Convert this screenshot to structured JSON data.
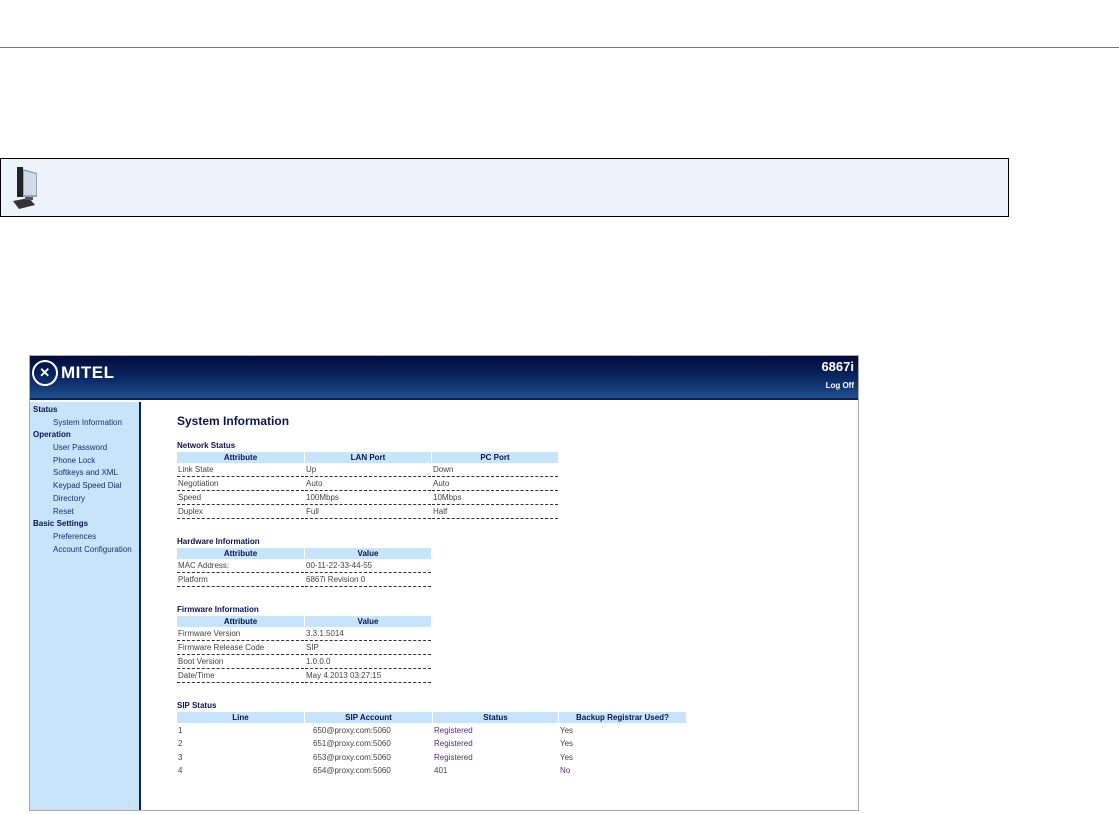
{
  "header": {
    "brand": "MITEL",
    "model": "6867i",
    "logoff": "Log Off"
  },
  "sidebar": [
    {
      "group": "Status",
      "items": [
        "System Information"
      ]
    },
    {
      "group": "Operation",
      "items": [
        "User Password",
        "Phone Lock",
        "Softkeys and XML",
        "Keypad Speed Dial",
        "Directory",
        "Reset"
      ]
    },
    {
      "group": "Basic Settings",
      "items": [
        "Preferences",
        "Account Configuration"
      ]
    }
  ],
  "page_title": "System Information",
  "network": {
    "title": "Network Status",
    "headers": [
      "Attribute",
      "LAN Port",
      "PC Port"
    ],
    "rows": [
      [
        "Link State",
        "Up",
        "Down"
      ],
      [
        "Negotiation",
        "Auto",
        "Auto"
      ],
      [
        "Speed",
        "100Mbps",
        "10Mbps"
      ],
      [
        "Duplex",
        "Full",
        "Half"
      ]
    ]
  },
  "hardware": {
    "title": "Hardware Information",
    "headers": [
      "Attribute",
      "Value"
    ],
    "rows": [
      [
        "MAC Address:",
        "00-11-22-33-44-55"
      ],
      [
        "Platform",
        "6867i Revision 0"
      ]
    ]
  },
  "firmware": {
    "title": "Firmware Information",
    "headers": [
      "Attribute",
      "Value"
    ],
    "rows": [
      [
        "Firmware Version",
        "3.3.1.5014"
      ],
      [
        "Firmware Release Code",
        "SIP"
      ],
      [
        "Boot Version",
        "1.0.0.0"
      ],
      [
        "Date/Time",
        "May 4 2013 03:27:15"
      ]
    ]
  },
  "sip": {
    "title": "SIP Status",
    "headers": [
      "Line",
      "SIP Account",
      "Status",
      "Backup Registrar Used?"
    ],
    "rows": [
      [
        "1",
        "650@proxy.com:5060",
        "Registered",
        "Yes"
      ],
      [
        "2",
        "651@proxy.com:5060",
        "Registered",
        "Yes"
      ],
      [
        "3",
        "653@proxy.com:5060",
        "Registered",
        "Yes"
      ],
      [
        "4",
        "654@proxy.com:5060",
        "401",
        "No"
      ]
    ]
  },
  "colors": {
    "header": "#0b2a66",
    "sidebar": "#c8e4fb",
    "note_bg": "#edf3fb"
  },
  "icons": {
    "note": "computer-icon"
  }
}
